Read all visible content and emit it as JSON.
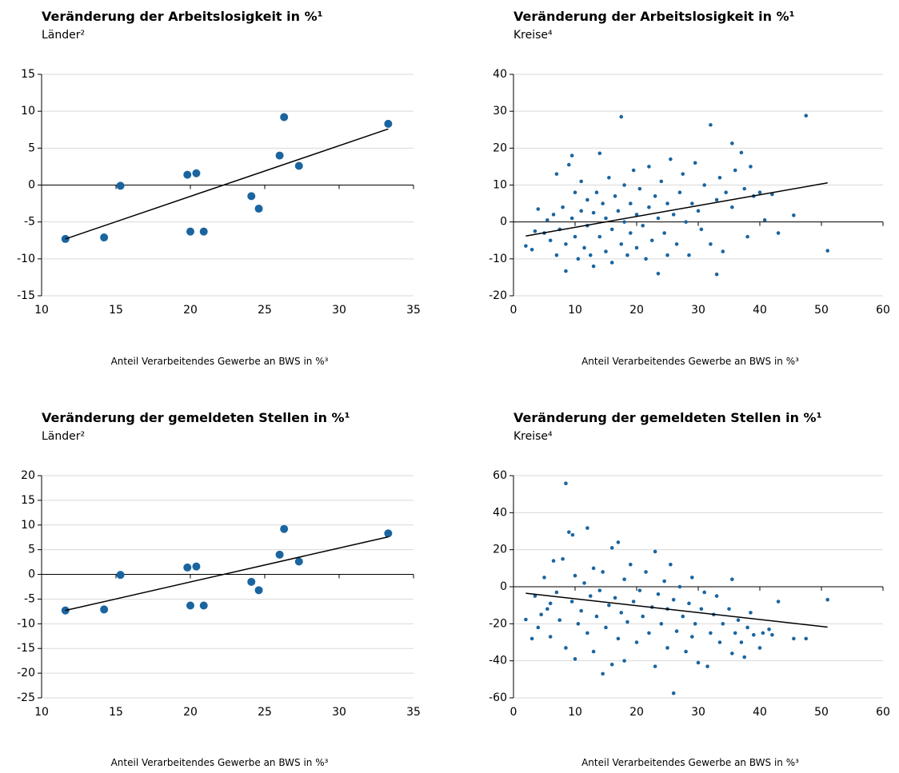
{
  "chart_data": [
    {
      "type": "scatter",
      "title": "Veränderung der Arbeitslosigkeit in %¹",
      "subtitle": "Länder²",
      "xlabel": "Anteil Verarbeitendes Gewerbe an BWS in %³",
      "xlim": [
        10,
        35
      ],
      "xticks": [
        10,
        15,
        20,
        25,
        30,
        35
      ],
      "ylim": [
        -15,
        15
      ],
      "yticks": [
        -15,
        -10,
        -5,
        0,
        5,
        10,
        15
      ],
      "grid": true,
      "marker_size": 5,
      "series": [
        {
          "color": "#1a65a0",
          "x": [
            11.6,
            14.2,
            15.3,
            19.8,
            20.0,
            20.4,
            20.9,
            24.1,
            24.6,
            26.0,
            26.3,
            27.3,
            33.3
          ],
          "values": [
            -7.3,
            -7.1,
            -0.1,
            1.4,
            -6.3,
            1.6,
            -6.3,
            -1.5,
            -3.2,
            4.0,
            9.2,
            2.6,
            8.3
          ]
        }
      ],
      "trendline": {
        "color": "#000000",
        "x": [
          11.6,
          33.3
        ],
        "values": [
          -7.3,
          7.6
        ]
      }
    },
    {
      "type": "scatter",
      "title": "Veränderung der Arbeitslosigkeit in %¹",
      "subtitle": "Kreise⁴",
      "xlabel": "Anteil Verarbeitendes Gewerbe an BWS in %³",
      "xlim": [
        0,
        60
      ],
      "xticks": [
        0,
        10,
        20,
        30,
        40,
        50,
        60
      ],
      "ylim": [
        -20,
        40
      ],
      "yticks": [
        -20,
        -10,
        0,
        10,
        20,
        30,
        40
      ],
      "grid": true,
      "marker_size": 2.3,
      "series": [
        {
          "color": "#1a65a0",
          "x": [
            2,
            3,
            3.5,
            4,
            5,
            5.5,
            6,
            6.5,
            7,
            7,
            7.5,
            8,
            8.5,
            8.5,
            9,
            9.5,
            9.5,
            10,
            10,
            10.5,
            11,
            11,
            11.5,
            12,
            12,
            12.5,
            13,
            13,
            13.5,
            14,
            14,
            14.5,
            15,
            15,
            15.5,
            16,
            16,
            16.5,
            17,
            17.5,
            17.5,
            18,
            18,
            18.5,
            19,
            19,
            19.5,
            20,
            20,
            20.5,
            21,
            21.5,
            22,
            22,
            22.5,
            23,
            23.5,
            23.5,
            24,
            24.5,
            25,
            25,
            25.5,
            26,
            26.5,
            27,
            27.5,
            28,
            28.5,
            29,
            29.5,
            30,
            30.5,
            31,
            32,
            32,
            33,
            33,
            33.5,
            34,
            34.5,
            35.5,
            35.5,
            36,
            37,
            37.5,
            38,
            38.5,
            39,
            40,
            40.8,
            42,
            43,
            45.5,
            47.5,
            51
          ],
          "values": [
            -6.5,
            -7.5,
            -2.5,
            3.5,
            -3,
            0.5,
            -5,
            2,
            13,
            -9,
            -2,
            4,
            -13.3,
            -6,
            15.5,
            18,
            1,
            8,
            -4,
            -10,
            11,
            3,
            -7,
            6,
            -1,
            -9,
            2.5,
            -12,
            8,
            18.6,
            -4,
            5,
            -8,
            1,
            12,
            -2,
            -11,
            7,
            3,
            28.5,
            -6,
            10,
            0,
            -9,
            5,
            -3,
            14,
            -7,
            2,
            9,
            -1,
            -10,
            4,
            15,
            -5,
            7,
            -14,
            1,
            11,
            -3,
            5,
            -9,
            17,
            2,
            -6,
            8,
            13,
            0,
            -9,
            5,
            16,
            3,
            -2,
            10,
            26.3,
            -6,
            -14.2,
            6,
            12,
            -8,
            8,
            21.3,
            4,
            14,
            18.8,
            9,
            -4,
            15,
            7,
            8,
            0.5,
            7.5,
            -3,
            1.8,
            28.8,
            -7.8
          ]
        }
      ],
      "trendline": {
        "color": "#000000",
        "x": [
          2,
          51
        ],
        "values": [
          -3.8,
          10.6
        ]
      }
    },
    {
      "type": "scatter",
      "title": "Veränderung der gemeldeten Stellen in %¹",
      "subtitle": "Länder²",
      "xlabel": "Anteil Verarbeitendes Gewerbe an BWS in %³",
      "xlim": [
        10,
        35
      ],
      "xticks": [
        10,
        15,
        20,
        25,
        30,
        35
      ],
      "ylim": [
        -25,
        20
      ],
      "yticks": [
        -25,
        -20,
        -15,
        -10,
        -5,
        0,
        5,
        10,
        15,
        20
      ],
      "grid": true,
      "marker_size": 5,
      "series": [
        {
          "color": "#1a65a0",
          "x": [
            11.6,
            14.2,
            15.3,
            19.8,
            20.0,
            20.4,
            20.9,
            24.1,
            24.6,
            26.0,
            26.3,
            27.3,
            33.3
          ],
          "values": [
            -7.3,
            -7.1,
            -0.1,
            1.4,
            -6.3,
            1.6,
            -6.3,
            -1.5,
            -3.2,
            4.0,
            9.2,
            2.6,
            8.3
          ]
        }
      ],
      "trendline": {
        "color": "#000000",
        "x": [
          11.6,
          33.3
        ],
        "values": [
          -7.3,
          7.6
        ]
      }
    },
    {
      "type": "scatter",
      "title": "Veränderung der gemeldeten Stellen in %¹",
      "subtitle": "Kreise⁴",
      "xlabel": "Anteil Verarbeitendes Gewerbe an BWS in %³",
      "xlim": [
        0,
        60
      ],
      "xticks": [
        0,
        10,
        20,
        30,
        40,
        50,
        60
      ],
      "ylim": [
        -60,
        60
      ],
      "yticks": [
        -60,
        -40,
        -20,
        0,
        20,
        40,
        60
      ],
      "grid": true,
      "marker_size": 2.3,
      "series": [
        {
          "color": "#1a65a0",
          "x": [
            2,
            3,
            3.5,
            4,
            5,
            5.5,
            6,
            6.5,
            7,
            7.5,
            8,
            8.5,
            8.5,
            9,
            9.5,
            9.6,
            10,
            10,
            10.5,
            11,
            11.5,
            12,
            12,
            12.5,
            13,
            13,
            13.5,
            14,
            14.5,
            14.5,
            15,
            15.5,
            16,
            16,
            16.5,
            17,
            17,
            17.5,
            18,
            18,
            18.5,
            19,
            19.5,
            20,
            20.5,
            21,
            21.5,
            22,
            22.5,
            23,
            23,
            23.5,
            24,
            24.5,
            25,
            25,
            25.5,
            26,
            26,
            26.5,
            27,
            27.5,
            28,
            28.5,
            29,
            29,
            29.5,
            30,
            30.5,
            31,
            31.5,
            32,
            32.5,
            33,
            33.5,
            34,
            35,
            35.5,
            35.5,
            36,
            36.5,
            37,
            37.5,
            38,
            38.5,
            39,
            40,
            40.5,
            41.5,
            42,
            43,
            45.5,
            47.5,
            51,
            4.5,
            6
          ],
          "values": [
            -17.7,
            -28,
            -5,
            -22,
            5,
            -12,
            -27,
            14,
            -3,
            -18,
            15,
            55.8,
            -33,
            29.5,
            -8,
            28,
            -39,
            6,
            -20,
            -13,
            2,
            31.7,
            -25,
            -5,
            10,
            -35,
            -16,
            -2,
            -47,
            8,
            -22,
            -10,
            21,
            -42,
            -6,
            24,
            -28,
            -14,
            4,
            -40,
            -19,
            12,
            -8,
            -30,
            -2,
            -16,
            8,
            -25,
            -11,
            19,
            -43,
            -4,
            -20,
            3,
            -33,
            -12,
            12,
            -57.5,
            -7,
            -24,
            0,
            -16,
            -35,
            -9,
            -27,
            5,
            -20,
            -41,
            -12,
            -3,
            -43,
            -25,
            -15,
            -5,
            -30,
            -20,
            -12,
            4,
            -36,
            -25,
            -18,
            -30,
            -38,
            -22,
            -14,
            -26,
            -33,
            -25,
            -23,
            -26,
            -8,
            -28,
            -28,
            -7,
            -15,
            -9
          ]
        }
      ],
      "trendline": {
        "color": "#000000",
        "x": [
          2,
          51
        ],
        "values": [
          -3.5,
          -21.8
        ]
      }
    }
  ]
}
